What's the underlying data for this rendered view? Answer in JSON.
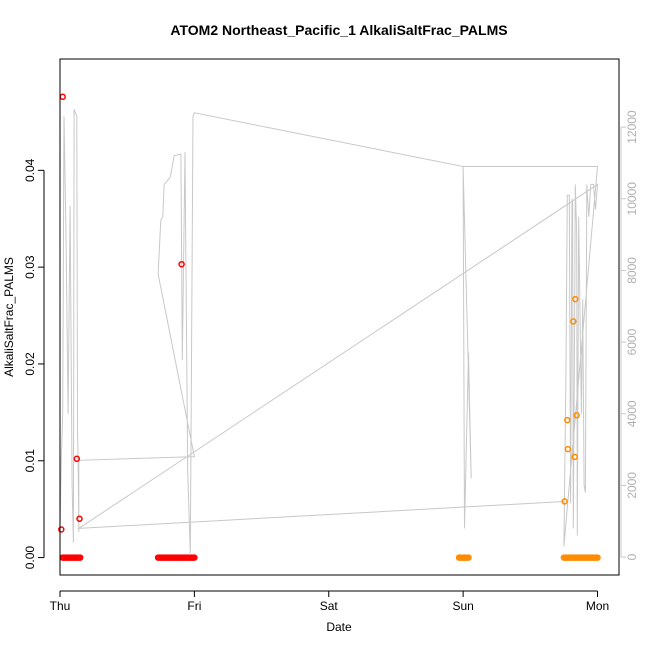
{
  "chart_data": {
    "type": "scatter",
    "title": "ATOM2 Northeast_Pacific_1 AlkaliSaltFrac_PALMS",
    "xlabel": "Date",
    "ylabel": "AlkaliSaltFrac_PALMS",
    "x_axis": {
      "min": 0,
      "max": 4.16,
      "unit": "days since Thu 00:00",
      "ticks": [
        {
          "value": 0,
          "label": "Thu"
        },
        {
          "value": 1,
          "label": "Fri"
        },
        {
          "value": 2,
          "label": "Sat"
        },
        {
          "value": 3,
          "label": "Sun"
        },
        {
          "value": 4,
          "label": "Mon"
        }
      ]
    },
    "y_left": {
      "min": -0.0018,
      "max": 0.0515,
      "ticks": [
        {
          "value": 0,
          "label": "0.00"
        },
        {
          "value": 0.01,
          "label": "0.01"
        },
        {
          "value": 0.02,
          "label": "0.02"
        },
        {
          "value": 0.03,
          "label": "0.03"
        },
        {
          "value": 0.04,
          "label": "0.04"
        }
      ]
    },
    "y_right": {
      "min": -500,
      "max": 13900,
      "ticks": [
        {
          "value": 0,
          "label": "0"
        },
        {
          "value": 2000,
          "label": "2000"
        },
        {
          "value": 4000,
          "label": "4000"
        },
        {
          "value": 6000,
          "label": "6000"
        },
        {
          "value": 8000,
          "label": "8000"
        },
        {
          "value": 10000,
          "label": "10000"
        },
        {
          "value": 12000,
          "label": "12000"
        }
      ]
    },
    "colors": {
      "red": "#ff0000",
      "orange": "#ff8c00",
      "line": "#c8c8c8"
    },
    "altitude_line": [
      [
        0.0,
        800
      ],
      [
        0.01,
        2700
      ],
      [
        0.02,
        4000
      ],
      [
        0.03,
        12300
      ],
      [
        0.045,
        9000
      ],
      [
        0.06,
        4000
      ],
      [
        0.075,
        9800
      ],
      [
        0.09,
        2000
      ],
      [
        0.1,
        400
      ],
      [
        0.105,
        12500
      ],
      [
        0.115,
        12400
      ],
      [
        0.125,
        12300
      ],
      [
        0.13,
        3500
      ],
      [
        0.135,
        2800
      ],
      [
        0.14,
        700
      ],
      [
        0.14,
        2700
      ],
      [
        0.98,
        2800
      ],
      [
        1.0,
        2800
      ],
      [
        0.73,
        7900
      ],
      [
        0.75,
        9400
      ],
      [
        0.765,
        9500
      ],
      [
        0.775,
        10400
      ],
      [
        0.82,
        10600
      ],
      [
        0.85,
        11200
      ],
      [
        0.9,
        11250
      ],
      [
        0.91,
        5500
      ],
      [
        0.93,
        11300
      ],
      [
        0.95,
        2400
      ],
      [
        0.97,
        100
      ],
      [
        0.99,
        12300
      ],
      [
        1.0,
        12400
      ],
      [
        3.0,
        10900
      ],
      [
        3.01,
        800
      ],
      [
        3.04,
        5700
      ],
      [
        3.06,
        2200
      ],
      [
        3.0,
        10900
      ],
      [
        4.0,
        10900
      ],
      [
        3.75,
        300
      ],
      [
        3.765,
        5000
      ],
      [
        3.775,
        10100
      ],
      [
        3.79,
        10100
      ],
      [
        3.8,
        1500
      ],
      [
        3.81,
        10000
      ],
      [
        3.815,
        9900
      ],
      [
        3.82,
        800
      ],
      [
        3.83,
        7000
      ],
      [
        3.835,
        10400
      ],
      [
        3.845,
        9000
      ],
      [
        3.85,
        600
      ],
      [
        3.86,
        9500
      ],
      [
        3.88,
        4000
      ],
      [
        3.89,
        7200
      ],
      [
        3.9,
        2000
      ],
      [
        3.91,
        1800
      ],
      [
        3.92,
        10400
      ],
      [
        3.935,
        9500
      ],
      [
        3.95,
        10400
      ],
      [
        3.97,
        10400
      ],
      [
        3.985,
        9700
      ],
      [
        4.0,
        10400
      ],
      [
        0.14,
        800
      ],
      [
        3.75,
        1550
      ]
    ],
    "series": [
      {
        "color": "red",
        "points": [
          [
            0.01,
            0.0029
          ],
          [
            0.02,
            0.0476
          ],
          [
            0.125,
            0.0102
          ],
          [
            0.145,
            0.004
          ],
          [
            0.905,
            0.0303
          ],
          [
            0.02,
            0
          ],
          [
            0.03,
            0
          ],
          [
            0.04,
            0
          ],
          [
            0.05,
            0
          ],
          [
            0.06,
            0
          ],
          [
            0.07,
            0
          ],
          [
            0.08,
            0
          ],
          [
            0.09,
            0
          ],
          [
            0.1,
            0
          ],
          [
            0.11,
            0
          ],
          [
            0.12,
            0
          ],
          [
            0.13,
            0
          ],
          [
            0.14,
            0
          ],
          [
            0.15,
            0
          ],
          [
            0.73,
            0
          ],
          [
            0.74,
            0
          ],
          [
            0.75,
            0
          ],
          [
            0.76,
            0
          ],
          [
            0.77,
            0
          ],
          [
            0.78,
            0
          ],
          [
            0.79,
            0
          ],
          [
            0.8,
            0
          ],
          [
            0.81,
            0
          ],
          [
            0.82,
            0
          ],
          [
            0.83,
            0
          ],
          [
            0.84,
            0
          ],
          [
            0.85,
            0
          ],
          [
            0.86,
            0
          ],
          [
            0.87,
            0
          ],
          [
            0.88,
            0
          ],
          [
            0.89,
            0
          ],
          [
            0.9,
            0
          ],
          [
            0.91,
            0
          ],
          [
            0.92,
            0
          ],
          [
            0.93,
            0
          ],
          [
            0.94,
            0
          ],
          [
            0.95,
            0
          ],
          [
            0.96,
            0
          ],
          [
            0.97,
            0
          ],
          [
            0.98,
            0
          ],
          [
            0.99,
            0
          ],
          [
            1.0,
            0
          ]
        ]
      },
      {
        "color": "orange",
        "points": [
          [
            3.755,
            0.0058
          ],
          [
            3.775,
            0.0142
          ],
          [
            3.78,
            0.0112
          ],
          [
            3.82,
            0.0244
          ],
          [
            3.83,
            0.0104
          ],
          [
            3.835,
            0.0267
          ],
          [
            3.845,
            0.0147
          ],
          [
            2.97,
            0
          ],
          [
            2.98,
            0
          ],
          [
            2.99,
            0
          ],
          [
            3.0,
            0
          ],
          [
            3.01,
            0
          ],
          [
            3.02,
            0
          ],
          [
            3.03,
            0
          ],
          [
            3.04,
            0
          ],
          [
            3.75,
            0
          ],
          [
            3.76,
            0
          ],
          [
            3.77,
            0
          ],
          [
            3.78,
            0
          ],
          [
            3.79,
            0
          ],
          [
            3.8,
            0
          ],
          [
            3.81,
            0
          ],
          [
            3.82,
            0
          ],
          [
            3.83,
            0
          ],
          [
            3.84,
            0
          ],
          [
            3.85,
            0
          ],
          [
            3.86,
            0
          ],
          [
            3.87,
            0
          ],
          [
            3.88,
            0
          ],
          [
            3.89,
            0
          ],
          [
            3.9,
            0
          ],
          [
            3.91,
            0
          ],
          [
            3.92,
            0
          ],
          [
            3.93,
            0
          ],
          [
            3.94,
            0
          ],
          [
            3.95,
            0
          ],
          [
            3.96,
            0
          ],
          [
            3.97,
            0
          ],
          [
            3.98,
            0
          ],
          [
            3.99,
            0
          ],
          [
            4.0,
            0
          ]
        ]
      }
    ]
  }
}
